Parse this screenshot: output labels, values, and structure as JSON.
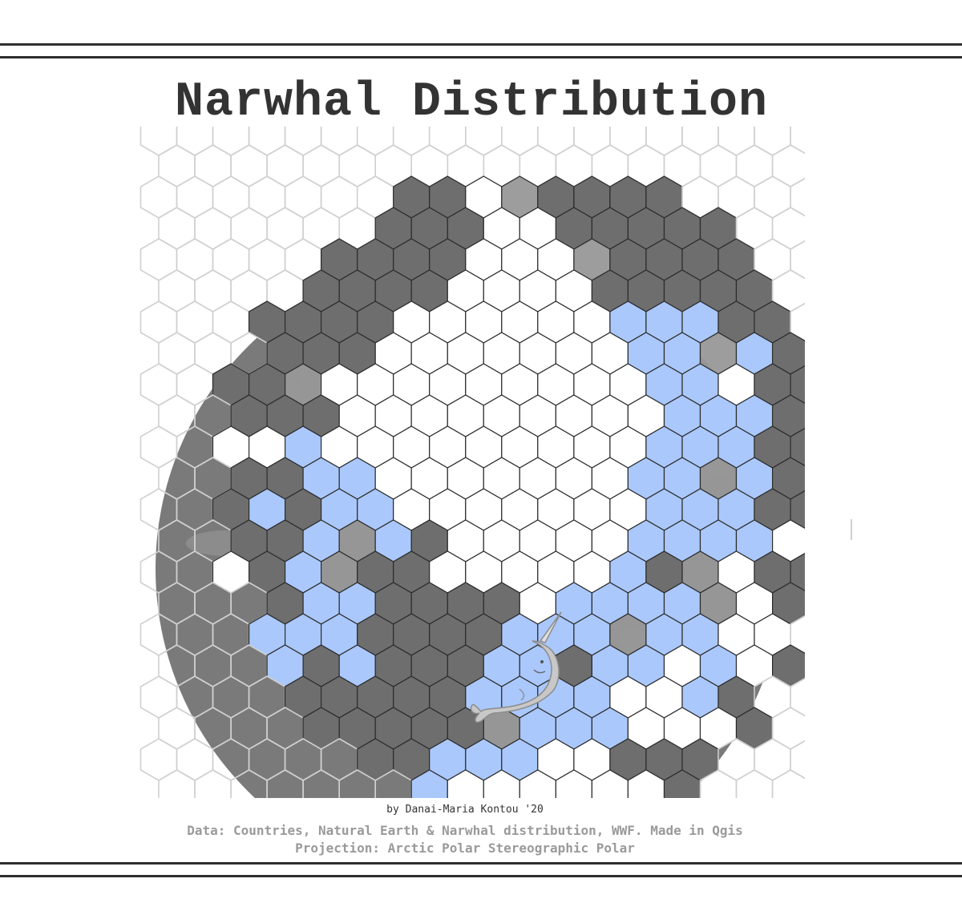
{
  "title": "Narwhal Distribution",
  "credits": {
    "author": "by Danai-Maria Kontou '20",
    "data_source": "Data: Countries, Natural Earth & Narwhal distribution, WWF. Made in Qgis",
    "projection": "Projection: Arctic Polar Stereographic Polar"
  },
  "colors": {
    "land": "#6e6e6e",
    "partial_land": "#989898",
    "sea": "#ffffff",
    "narwhal_range": "#aac8fb",
    "grid_outside": "#d0d0d0",
    "grid_inside": "#2b2b2b",
    "basemap_disc": "#7a7a7a",
    "narwhal_icon": "#c8c8c8"
  },
  "map_legend": {
    "L": "land hexagon",
    "P": "partly land hexagon",
    "W": "open sea hexagon",
    "N": "narwhal distribution hexagon",
    "-": "outside the polar map"
  },
  "hex_rows": [
    "-------------------",
    "-------------------",
    "-------LLWPLLLL----",
    "------LLLWWLLLLL---",
    "-----LLLLWWWPLLLL--",
    "----LLLLWWWWLLLLL--",
    "---LLLLWWWWWWNNNLL-",
    "---LLLWWWWWWWNNPNLL",
    "--LLPWWWWWWWWWNNWLL",
    "--LLLWWWWWWWWWNNNLL",
    "--WWNWWWWWWWWWNNNLL",
    "--LLNNWWWWWWWNNPNLL",
    "--LNLNNWWWWWWWNNNLL",
    "--LLNPNLWWWWWNNNNWL",
    "--WLNPLLWWWWWNLPWLL",
    "---LNNLLLLWNNNNPWL-",
    "---NNNLLLLNNNPNNWW-",
    "---NLNLLLNNLNNWNWL-",
    "----LLLLLNNNNWWNL--",
    "----LLLLLPNNNWWWL--",
    "------LLNNNWWLLL---",
    "-------NWWWWWWL----",
    "--------WWWWW------",
    "-------------------",
    "-------------------"
  ]
}
